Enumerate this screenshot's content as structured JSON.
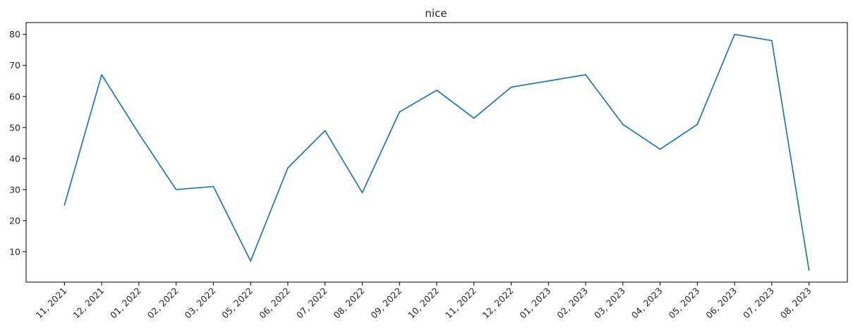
{
  "chart_data": {
    "type": "line",
    "title": "nice",
    "xlabel": "",
    "ylabel": "",
    "categories": [
      "11, 2021",
      "12, 2021",
      "01, 2022",
      "02, 2022",
      "03, 2022",
      "05, 2022",
      "06, 2022",
      "07, 2022",
      "08, 2022",
      "09, 2022",
      "10, 2022",
      "11, 2022",
      "12, 2022",
      "01, 2023",
      "02, 2023",
      "03, 2023",
      "04, 2023",
      "05, 2023",
      "06, 2023",
      "07, 2023",
      "08, 2023"
    ],
    "values": [
      25,
      67,
      48,
      30,
      31,
      7,
      37,
      49,
      29,
      55,
      62,
      53,
      63,
      65,
      67,
      51,
      43,
      51,
      80,
      78,
      4
    ],
    "yticks": [
      10,
      20,
      30,
      40,
      50,
      60,
      70,
      80
    ],
    "ylim": [
      0.2,
      83.8
    ],
    "grid": false,
    "line_color": "#1f77b4",
    "axis_color": "#000000"
  }
}
